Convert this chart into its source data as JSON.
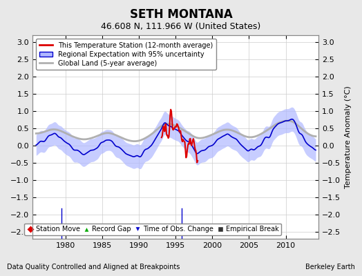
{
  "title": "SETH MONTANA",
  "subtitle": "46.608 N, 111.966 W (United States)",
  "ylabel": "Temperature Anomaly (°C)",
  "footer_left": "Data Quality Controlled and Aligned at Breakpoints",
  "footer_right": "Berkeley Earth",
  "xlim": [
    1975.5,
    2014.5
  ],
  "ylim": [
    -2.7,
    3.2
  ],
  "yticks": [
    -2.5,
    -2,
    -1.5,
    -1,
    -0.5,
    0,
    0.5,
    1,
    1.5,
    2,
    2.5,
    3
  ],
  "xticks": [
    1980,
    1985,
    1990,
    1995,
    2000,
    2005,
    2010
  ],
  "background_color": "#e8e8e8",
  "plot_bg_color": "#ffffff",
  "grid_color": "#cccccc",
  "regional_fill_color": "#b0b8ff",
  "regional_line_color": "#0000cc",
  "station_color": "#dd0000",
  "global_color": "#b0b0b0",
  "legend_marker_colors": {
    "station_move": "#dd0000",
    "record_gap": "#00aa00",
    "time_obs": "#0000cc",
    "empirical": "#333333"
  }
}
